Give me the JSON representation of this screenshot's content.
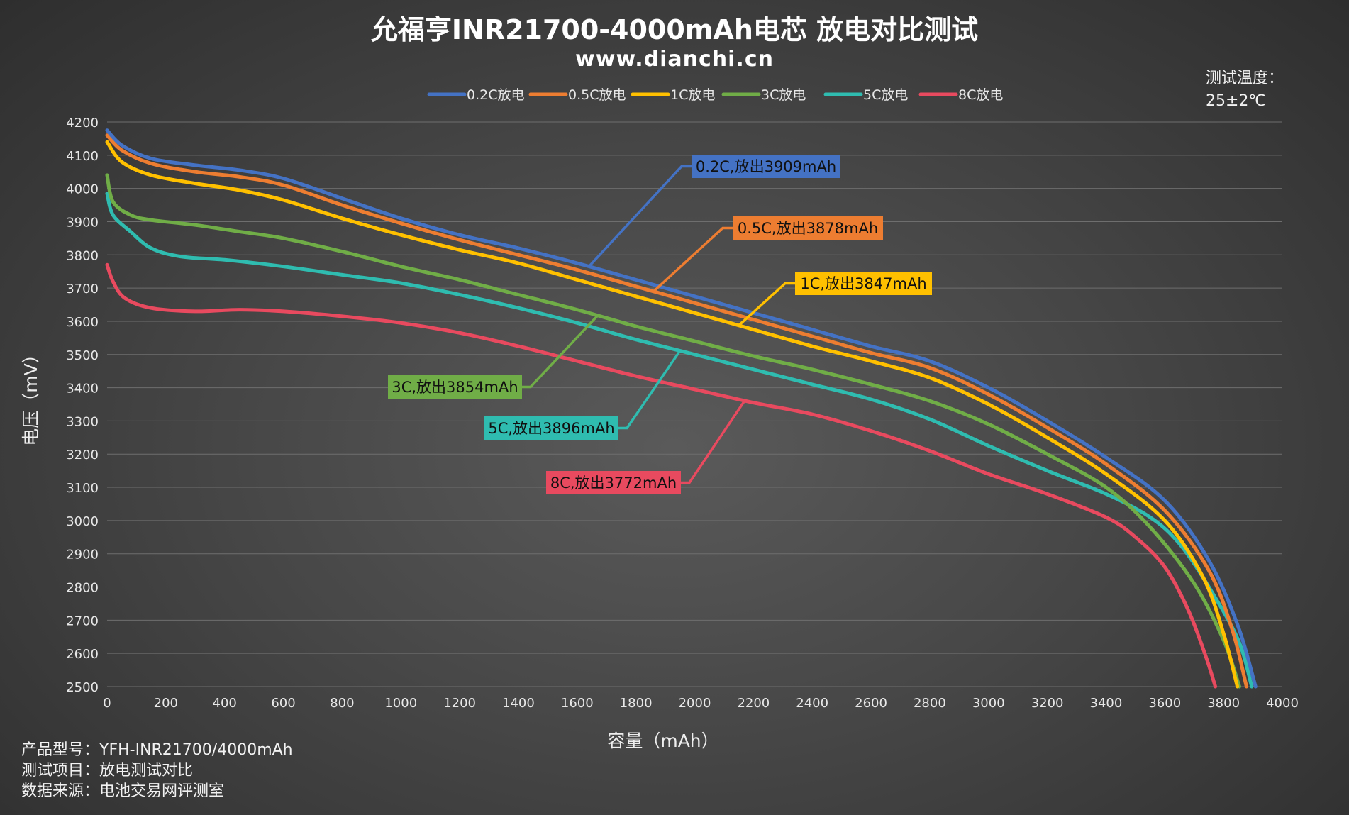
{
  "chart_data": {
    "type": "line",
    "title": "允福亨INR21700-4000mAh电芯 放电对比测试",
    "subtitle": "www.dianchi.cn",
    "xlabel": "容量（mAh）",
    "ylabel": "电压（mV）",
    "xlim": [
      0,
      4000
    ],
    "ylim": [
      2500,
      4200
    ],
    "xticks": [
      0,
      200,
      400,
      600,
      800,
      1000,
      1200,
      1400,
      1600,
      1800,
      2000,
      2200,
      2400,
      2600,
      2800,
      3000,
      3200,
      3400,
      3600,
      3800,
      4000
    ],
    "yticks": [
      2500,
      2600,
      2700,
      2800,
      2900,
      3000,
      3100,
      3200,
      3300,
      3400,
      3500,
      3600,
      3700,
      3800,
      3900,
      4000,
      4100,
      4200
    ],
    "grid": true,
    "legend_position": "top",
    "series": [
      {
        "name": "0.2C放电",
        "color": "#4472C4",
        "label": "0.2C,放出3909mAh",
        "points": [
          [
            0,
            4175
          ],
          [
            50,
            4130
          ],
          [
            150,
            4090
          ],
          [
            300,
            4070
          ],
          [
            450,
            4055
          ],
          [
            600,
            4030
          ],
          [
            800,
            3970
          ],
          [
            1000,
            3910
          ],
          [
            1200,
            3860
          ],
          [
            1400,
            3820
          ],
          [
            1600,
            3775
          ],
          [
            1800,
            3725
          ],
          [
            2000,
            3675
          ],
          [
            2200,
            3625
          ],
          [
            2400,
            3575
          ],
          [
            2600,
            3525
          ],
          [
            2800,
            3480
          ],
          [
            3000,
            3400
          ],
          [
            3200,
            3300
          ],
          [
            3400,
            3190
          ],
          [
            3600,
            3060
          ],
          [
            3750,
            2880
          ],
          [
            3850,
            2680
          ],
          [
            3909,
            2500
          ]
        ]
      },
      {
        "name": "0.5C放电",
        "color": "#ED7D31",
        "label": "0.5C,放出3878mAh",
        "points": [
          [
            0,
            4160
          ],
          [
            50,
            4115
          ],
          [
            150,
            4075
          ],
          [
            300,
            4050
          ],
          [
            450,
            4035
          ],
          [
            600,
            4010
          ],
          [
            800,
            3950
          ],
          [
            1000,
            3895
          ],
          [
            1200,
            3845
          ],
          [
            1400,
            3800
          ],
          [
            1600,
            3755
          ],
          [
            1800,
            3705
          ],
          [
            2000,
            3655
          ],
          [
            2200,
            3605
          ],
          [
            2400,
            3555
          ],
          [
            2600,
            3505
          ],
          [
            2800,
            3460
          ],
          [
            3000,
            3380
          ],
          [
            3200,
            3280
          ],
          [
            3400,
            3170
          ],
          [
            3600,
            3030
          ],
          [
            3750,
            2850
          ],
          [
            3830,
            2670
          ],
          [
            3878,
            2500
          ]
        ]
      },
      {
        "name": "1C放电",
        "color": "#FFC000",
        "label": "1C,放出3847mAh",
        "points": [
          [
            0,
            4140
          ],
          [
            50,
            4080
          ],
          [
            150,
            4040
          ],
          [
            300,
            4015
          ],
          [
            450,
            3995
          ],
          [
            600,
            3965
          ],
          [
            800,
            3910
          ],
          [
            1000,
            3860
          ],
          [
            1200,
            3815
          ],
          [
            1400,
            3775
          ],
          [
            1600,
            3725
          ],
          [
            1800,
            3675
          ],
          [
            2000,
            3625
          ],
          [
            2200,
            3575
          ],
          [
            2400,
            3525
          ],
          [
            2600,
            3480
          ],
          [
            2800,
            3430
          ],
          [
            3000,
            3350
          ],
          [
            3200,
            3250
          ],
          [
            3400,
            3140
          ],
          [
            3600,
            3000
          ],
          [
            3730,
            2830
          ],
          [
            3800,
            2660
          ],
          [
            3847,
            2500
          ]
        ]
      },
      {
        "name": "3C放电",
        "color": "#70AD47",
        "label": "3C,放出3854mAh",
        "points": [
          [
            0,
            4040
          ],
          [
            20,
            3960
          ],
          [
            80,
            3920
          ],
          [
            150,
            3905
          ],
          [
            300,
            3890
          ],
          [
            450,
            3870
          ],
          [
            600,
            3850
          ],
          [
            800,
            3810
          ],
          [
            1000,
            3765
          ],
          [
            1200,
            3725
          ],
          [
            1400,
            3680
          ],
          [
            1600,
            3635
          ],
          [
            1800,
            3585
          ],
          [
            2000,
            3540
          ],
          [
            2200,
            3495
          ],
          [
            2400,
            3455
          ],
          [
            2600,
            3410
          ],
          [
            2800,
            3360
          ],
          [
            3000,
            3290
          ],
          [
            3200,
            3200
          ],
          [
            3400,
            3100
          ],
          [
            3550,
            2980
          ],
          [
            3700,
            2810
          ],
          [
            3800,
            2640
          ],
          [
            3854,
            2500
          ]
        ]
      },
      {
        "name": "5C放电",
        "color": "#2FBCB0",
        "label": "5C,放出3896mAh",
        "points": [
          [
            0,
            3985
          ],
          [
            20,
            3920
          ],
          [
            80,
            3870
          ],
          [
            150,
            3820
          ],
          [
            250,
            3795
          ],
          [
            400,
            3785
          ],
          [
            600,
            3765
          ],
          [
            800,
            3740
          ],
          [
            1000,
            3715
          ],
          [
            1200,
            3680
          ],
          [
            1400,
            3640
          ],
          [
            1600,
            3595
          ],
          [
            1800,
            3545
          ],
          [
            2000,
            3500
          ],
          [
            2200,
            3455
          ],
          [
            2400,
            3410
          ],
          [
            2600,
            3365
          ],
          [
            2800,
            3305
          ],
          [
            3000,
            3225
          ],
          [
            3200,
            3150
          ],
          [
            3400,
            3080
          ],
          [
            3550,
            3010
          ],
          [
            3650,
            2930
          ],
          [
            3750,
            2800
          ],
          [
            3850,
            2640
          ],
          [
            3896,
            2500
          ]
        ]
      },
      {
        "name": "8C放电",
        "color": "#E84A5F",
        "label": "8C,放出3772mAh",
        "points": [
          [
            0,
            3770
          ],
          [
            20,
            3720
          ],
          [
            60,
            3670
          ],
          [
            150,
            3640
          ],
          [
            300,
            3630
          ],
          [
            450,
            3635
          ],
          [
            600,
            3630
          ],
          [
            800,
            3615
          ],
          [
            1000,
            3595
          ],
          [
            1200,
            3565
          ],
          [
            1400,
            3525
          ],
          [
            1600,
            3480
          ],
          [
            1800,
            3435
          ],
          [
            2000,
            3395
          ],
          [
            2200,
            3355
          ],
          [
            2400,
            3320
          ],
          [
            2600,
            3270
          ],
          [
            2800,
            3210
          ],
          [
            3000,
            3140
          ],
          [
            3200,
            3080
          ],
          [
            3400,
            3010
          ],
          [
            3500,
            2950
          ],
          [
            3600,
            2860
          ],
          [
            3680,
            2730
          ],
          [
            3740,
            2590
          ],
          [
            3772,
            2500
          ]
        ]
      }
    ],
    "annotations": [
      {
        "text": "0.2C,放出3909mAh",
        "series": 0
      },
      {
        "text": "0.5C,放出3878mAh",
        "series": 1
      },
      {
        "text": "1C,放出3847mAh",
        "series": 2
      },
      {
        "text": "3C,放出3854mAh",
        "series": 3
      },
      {
        "text": "5C,放出3896mAh",
        "series": 4
      },
      {
        "text": "8C,放出3772mAh",
        "series": 5
      }
    ],
    "notes": {
      "temp_line1": "测试温度：",
      "temp_line2": "25±2℃",
      "info": [
        "产品型号：YFH-INR21700/4000mAh",
        "测试项目：放电测试对比",
        "数据来源：电池交易网评测室"
      ]
    }
  }
}
